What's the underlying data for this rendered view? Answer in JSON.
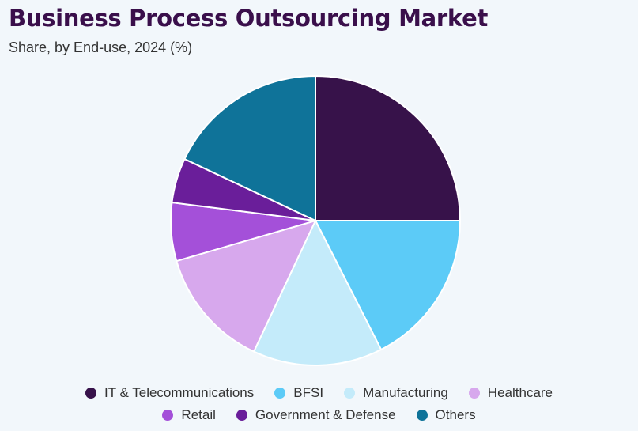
{
  "header": {
    "title": "Business Process Outsourcing Market",
    "subtitle": "Share, by End-use, 2024 (%)"
  },
  "chart_data": {
    "type": "pie",
    "title": "Business Process Outsourcing Market",
    "subtitle": "Share, by End-use, 2024 (%)",
    "start_angle_deg": 0,
    "direction": "clockwise",
    "legend_position": "bottom",
    "slices": [
      {
        "label": "IT & Telecommunications",
        "value": 25.0,
        "color": "#37124a"
      },
      {
        "label": "BFSI",
        "value": 17.5,
        "color": "#5ccbf7"
      },
      {
        "label": "Manufacturing",
        "value": 14.5,
        "color": "#c4ebfa"
      },
      {
        "label": "Healthcare",
        "value": 13.5,
        "color": "#d7a8ed"
      },
      {
        "label": "Retail",
        "value": 6.5,
        "color": "#a450d9"
      },
      {
        "label": "Government & Defense",
        "value": 5.0,
        "color": "#6a1e9a"
      },
      {
        "label": "Others",
        "value": 18.0,
        "color": "#0f7399"
      }
    ]
  }
}
